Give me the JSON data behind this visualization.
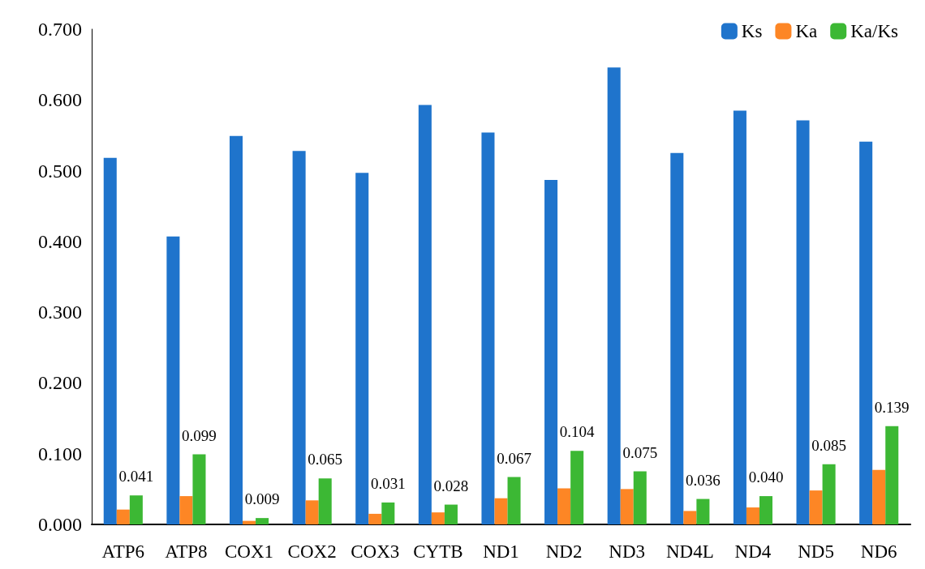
{
  "chart_data": {
    "type": "bar",
    "categories": [
      "ATP6",
      "ATP8",
      "COX1",
      "COX2",
      "COX3",
      "CYTB",
      "ND1",
      "ND2",
      "ND3",
      "ND4L",
      "ND4",
      "ND5",
      "ND6"
    ],
    "series": [
      {
        "name": "Ks",
        "color": "#1f74cc",
        "values": [
          0.518,
          0.407,
          0.549,
          0.528,
          0.497,
          0.593,
          0.554,
          0.487,
          0.646,
          0.525,
          0.585,
          0.571,
          0.541
        ]
      },
      {
        "name": "Ka",
        "color": "#fd8625",
        "values": [
          0.021,
          0.04,
          0.005,
          0.034,
          0.015,
          0.017,
          0.037,
          0.051,
          0.05,
          0.019,
          0.024,
          0.048,
          0.077
        ]
      },
      {
        "name": "Ka/Ks",
        "color": "#3cb834",
        "values": [
          0.041,
          0.099,
          0.009,
          0.065,
          0.031,
          0.028,
          0.067,
          0.104,
          0.075,
          0.036,
          0.04,
          0.085,
          0.139
        ],
        "value_labels": [
          "0.041",
          "0.099",
          "0.009",
          "0.065",
          "0.031",
          "0.028",
          "0.067",
          "0.104",
          "0.075",
          "0.036",
          "0.040",
          "0.085",
          "0.139"
        ]
      }
    ],
    "ylim": [
      0,
      0.7
    ],
    "yticks": [
      {
        "value": 0,
        "label": "0.000"
      },
      {
        "value": 0.1,
        "label": "0.100"
      },
      {
        "value": 0.2,
        "label": "0.200"
      },
      {
        "value": 0.3,
        "label": "0.300"
      },
      {
        "value": 0.4,
        "label": "0.400"
      },
      {
        "value": 0.5,
        "label": "0.500"
      },
      {
        "value": 0.6,
        "label": "0.600"
      },
      {
        "value": 0.7,
        "label": "0.700"
      }
    ],
    "grid": false,
    "legend": "top right"
  }
}
